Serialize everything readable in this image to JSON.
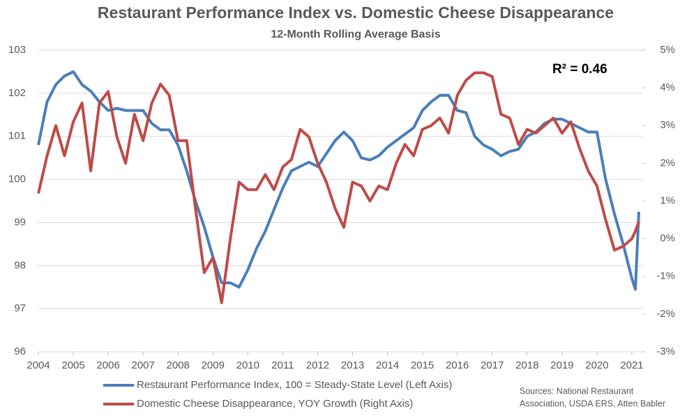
{
  "chart_data": {
    "type": "line",
    "title": "Restaurant Performance Index vs. Domestic Cheese Disappearance",
    "subtitle": "12-Month Rolling Average Basis",
    "annotation": "R² = 0.46",
    "source": [
      "Sources: National Restaurant",
      "Association, USDA ERS, Atten Babler"
    ],
    "x": [
      2004,
      2004.25,
      2004.5,
      2004.75,
      2005,
      2005.25,
      2005.5,
      2005.75,
      2006,
      2006.25,
      2006.5,
      2006.75,
      2007,
      2007.25,
      2007.5,
      2007.75,
      2008,
      2008.25,
      2008.5,
      2008.75,
      2009,
      2009.25,
      2009.5,
      2009.75,
      2010,
      2010.25,
      2010.5,
      2010.75,
      2011,
      2011.25,
      2011.5,
      2011.75,
      2012,
      2012.25,
      2012.5,
      2012.75,
      2013,
      2013.25,
      2013.5,
      2013.75,
      2014,
      2014.25,
      2014.5,
      2014.75,
      2015,
      2015.25,
      2015.5,
      2015.75,
      2016,
      2016.25,
      2016.5,
      2016.75,
      2017,
      2017.25,
      2017.5,
      2017.75,
      2018,
      2018.25,
      2018.5,
      2018.75,
      2019,
      2019.25,
      2019.5,
      2019.75,
      2020,
      2020.25,
      2020.5,
      2020.75,
      2021,
      2021.1,
      2021.2
    ],
    "series": [
      {
        "name": "Restaurant Performance Index, 100 = Steady-State Level (Left Axis)",
        "color": "#4a7ebb",
        "axis": "y",
        "values": [
          100.8,
          101.8,
          102.2,
          102.4,
          102.5,
          102.2,
          102.05,
          101.8,
          101.6,
          101.65,
          101.6,
          101.6,
          101.6,
          101.3,
          101.15,
          101.15,
          100.8,
          100.2,
          99.5,
          98.9,
          98.2,
          97.6,
          97.6,
          97.5,
          97.9,
          98.4,
          98.8,
          99.3,
          99.8,
          100.2,
          100.3,
          100.4,
          100.3,
          100.6,
          100.9,
          101.1,
          100.9,
          100.5,
          100.45,
          100.55,
          100.75,
          100.9,
          101.05,
          101.2,
          101.6,
          101.8,
          101.95,
          101.95,
          101.6,
          101.55,
          101.0,
          100.8,
          100.7,
          100.55,
          100.65,
          100.7,
          101.0,
          101.1,
          101.3,
          101.4,
          101.4,
          101.3,
          101.2,
          101.1,
          101.1,
          100.0,
          99.2,
          98.5,
          97.7,
          97.45,
          99.25
        ]
      },
      {
        "name": "Domestic Cheese Disappearance, YOY Growth (Right Axis)",
        "color": "#be4b48",
        "axis": "y2",
        "values": [
          1.2,
          2.2,
          3.0,
          2.2,
          3.1,
          3.6,
          1.8,
          3.6,
          3.9,
          2.7,
          2.0,
          3.3,
          2.6,
          3.6,
          4.1,
          3.8,
          2.6,
          2.6,
          0.8,
          -0.9,
          -0.5,
          -1.7,
          0.0,
          1.5,
          1.3,
          1.3,
          1.7,
          1.3,
          1.9,
          2.1,
          2.9,
          2.7,
          2.0,
          1.5,
          0.8,
          0.3,
          1.5,
          1.4,
          1.0,
          1.4,
          1.3,
          2.0,
          2.5,
          2.2,
          2.9,
          3.0,
          3.2,
          2.8,
          3.8,
          4.2,
          4.4,
          4.4,
          4.3,
          3.3,
          3.2,
          2.5,
          2.9,
          2.8,
          3.0,
          3.2,
          2.8,
          3.1,
          2.4,
          1.8,
          1.4,
          0.5,
          -0.3,
          -0.2,
          0.0,
          0.2,
          0.45
        ]
      }
    ],
    "xlim": [
      2004,
      2021.3
    ],
    "xticks": [
      2004,
      2005,
      2006,
      2007,
      2008,
      2009,
      2010,
      2011,
      2012,
      2013,
      2014,
      2015,
      2016,
      2017,
      2018,
      2019,
      2020,
      2021
    ],
    "ylim": [
      96,
      103
    ],
    "yticks": [
      96,
      97,
      98,
      99,
      100,
      101,
      102,
      103
    ],
    "y2lim": [
      -3,
      5
    ],
    "y2ticks": [
      {
        "value": -3,
        "label": "-3%"
      },
      {
        "value": -2,
        "label": "-2%"
      },
      {
        "value": -1,
        "label": "-1%"
      },
      {
        "value": 0,
        "label": "0%"
      },
      {
        "value": 1,
        "label": "1%"
      },
      {
        "value": 2,
        "label": "2%"
      },
      {
        "value": 3,
        "label": "3%"
      },
      {
        "value": 4,
        "label": "4%"
      },
      {
        "value": 5,
        "label": "5%"
      }
    ],
    "grid": true
  }
}
